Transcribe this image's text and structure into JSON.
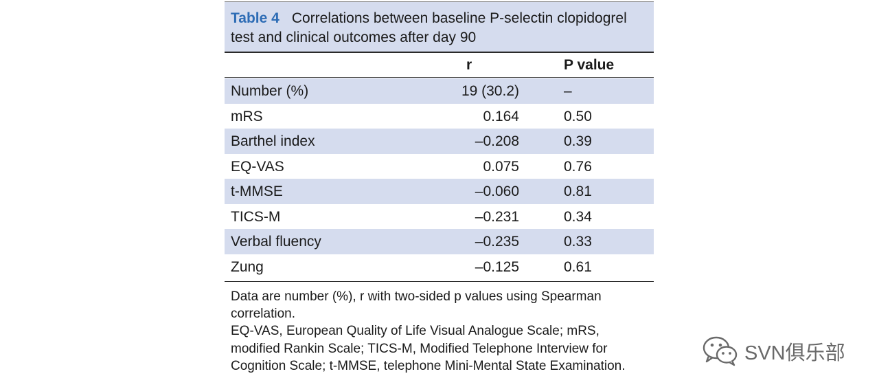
{
  "caption": {
    "label": "Table 4",
    "title": "Correlations between baseline P-selectin clopidogrel test and clinical outcomes after day 90"
  },
  "columns": [
    "",
    "r",
    "P value"
  ],
  "rows": [
    {
      "measure": "Number (%)",
      "r": "19 (30.2)",
      "p": "–"
    },
    {
      "measure": "mRS",
      "r": "0.164",
      "p": "0.50"
    },
    {
      "measure": "Barthel index",
      "r": "–0.208",
      "p": "0.39"
    },
    {
      "measure": "EQ-VAS",
      "r": "0.075",
      "p": "0.76"
    },
    {
      "measure": "t-MMSE",
      "r": "–0.060",
      "p": "0.81"
    },
    {
      "measure": "TICS-M",
      "r": "–0.231",
      "p": "0.34"
    },
    {
      "measure": "Verbal fluency",
      "r": "–0.235",
      "p": "0.33"
    },
    {
      "measure": "Zung",
      "r": "–0.125",
      "p": "0.61"
    }
  ],
  "footnotes": [
    "Data are number (%), r with two-sided p values using Spearman correlation.",
    "EQ-VAS, European Quality of Life Visual Analogue Scale; mRS, modified Rankin Scale; TICS-M, Modified Telephone Interview for Cognition Scale; t-MMSE, telephone Mini-Mental State Examination."
  ],
  "watermark": {
    "icon": "wechat-icon",
    "text": "SVN俱乐部"
  },
  "colors": {
    "shade": "#d5dcee",
    "label": "#2d6cb5"
  }
}
